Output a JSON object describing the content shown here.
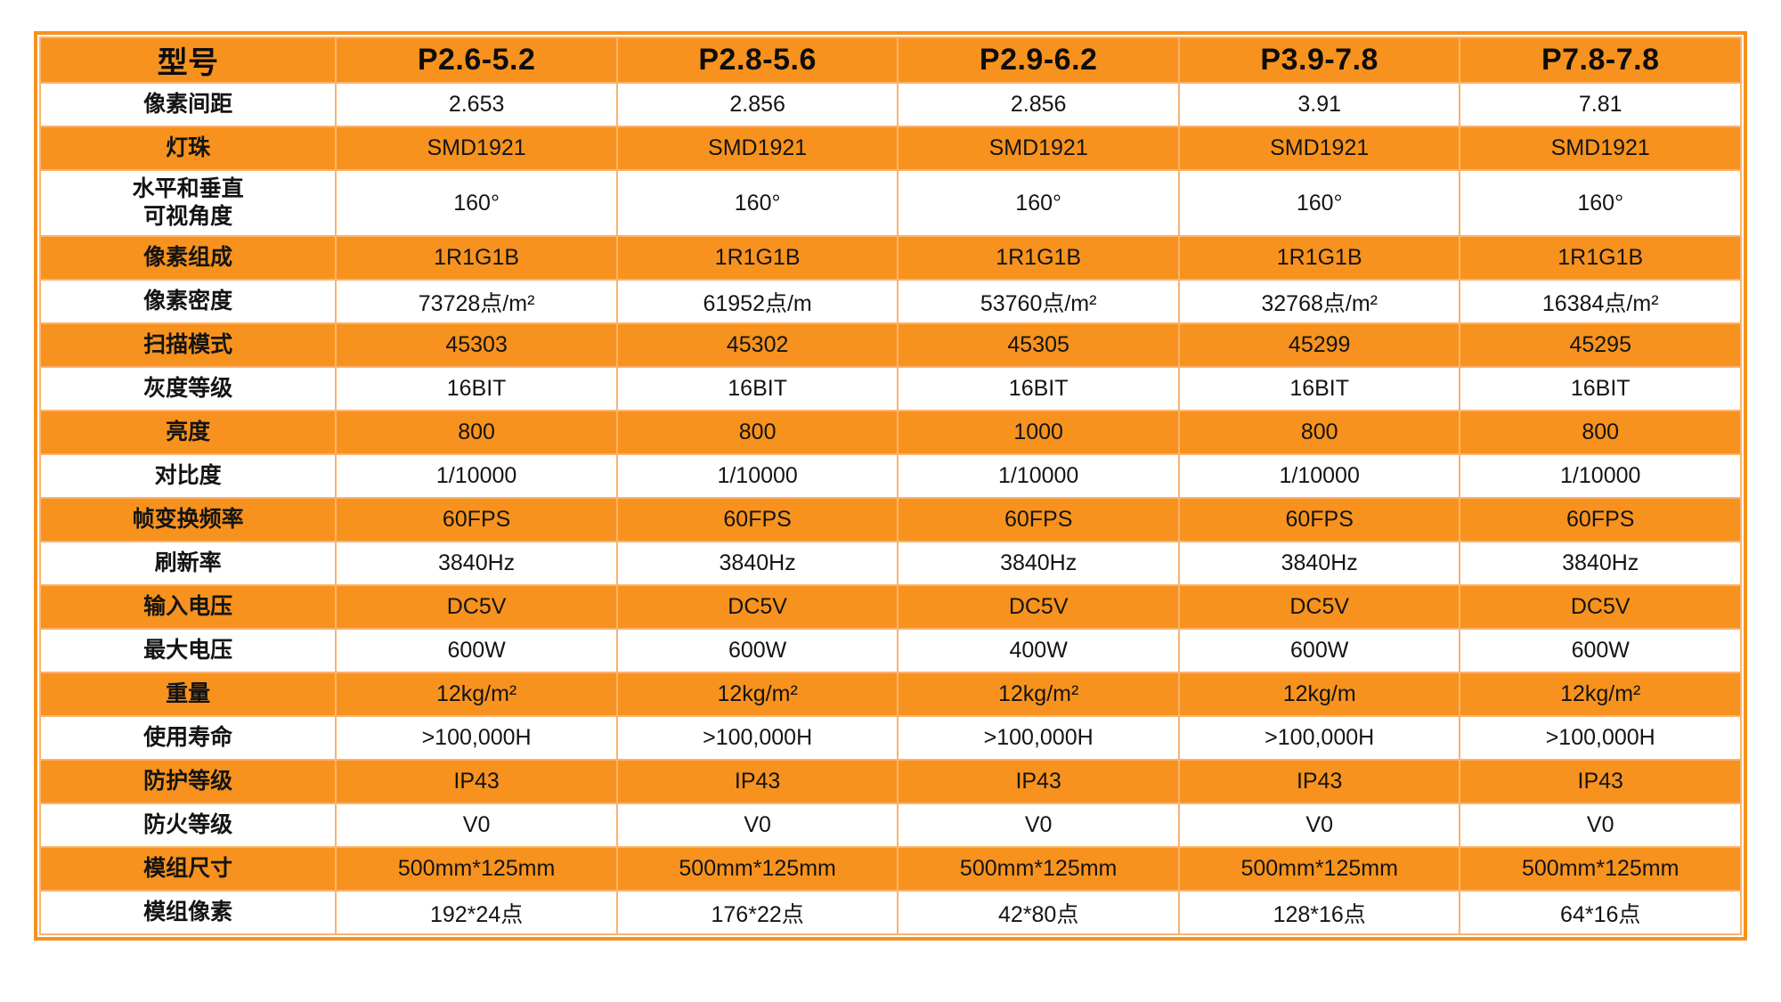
{
  "colors": {
    "orange_fill": "#F7921E",
    "grid_line": "#FBB26E",
    "text": "#141414",
    "page_background": "#FFFFFF"
  },
  "table": {
    "corner_label": "型号",
    "columns": [
      "P2.6-5.2",
      "P2.8-5.6",
      "P2.9-6.2",
      "P3.9-7.8",
      "P7.8-7.8"
    ],
    "rows": [
      {
        "label": "像素间距",
        "shade": "white",
        "values": [
          "2.653",
          "2.856",
          "2.856",
          "3.91",
          "7.81"
        ]
      },
      {
        "label": "灯珠",
        "shade": "orange",
        "values": [
          "SMD1921",
          "SMD1921",
          "SMD1921",
          "SMD1921",
          "SMD1921"
        ]
      },
      {
        "label": "水平和垂直\n可视角度",
        "shade": "white",
        "tall": true,
        "values": [
          "160°",
          "160°",
          "160°",
          "160°",
          "160°"
        ]
      },
      {
        "label": "像素组成",
        "shade": "orange",
        "values": [
          "1R1G1B",
          "1R1G1B",
          "1R1G1B",
          "1R1G1B",
          "1R1G1B"
        ]
      },
      {
        "label": "像素密度",
        "shade": "white",
        "values": [
          "73728点/m²",
          "61952点/m",
          "53760点/m²",
          "32768点/m²",
          "16384点/m²"
        ]
      },
      {
        "label": "扫描模式",
        "shade": "orange",
        "values": [
          "45303",
          "45302",
          "45305",
          "45299",
          "45295"
        ]
      },
      {
        "label": "灰度等级",
        "shade": "white",
        "values": [
          "16BIT",
          "16BIT",
          "16BIT",
          "16BIT",
          "16BIT"
        ]
      },
      {
        "label": "亮度",
        "shade": "orange",
        "values": [
          "800",
          "800",
          "1000",
          "800",
          "800"
        ]
      },
      {
        "label": "对比度",
        "shade": "white",
        "values": [
          "1/10000",
          "1/10000",
          "1/10000",
          "1/10000",
          "1/10000"
        ]
      },
      {
        "label": "帧变换频率",
        "shade": "orange",
        "values": [
          "60FPS",
          "60FPS",
          "60FPS",
          "60FPS",
          "60FPS"
        ]
      },
      {
        "label": "刷新率",
        "shade": "white",
        "values": [
          "3840Hz",
          "3840Hz",
          "3840Hz",
          "3840Hz",
          "3840Hz"
        ]
      },
      {
        "label": "输入电压",
        "shade": "orange",
        "values": [
          "DC5V",
          "DC5V",
          "DC5V",
          "DC5V",
          "DC5V"
        ]
      },
      {
        "label": "最大电压",
        "shade": "white",
        "values": [
          "600W",
          "600W",
          "400W",
          "600W",
          "600W"
        ]
      },
      {
        "label": "重量",
        "shade": "orange",
        "values": [
          "12kg/m²",
          "12kg/m²",
          "12kg/m²",
          "12kg/m",
          "12kg/m²"
        ]
      },
      {
        "label": "使用寿命",
        "shade": "white",
        "values": [
          ">100,000H",
          ">100,000H",
          ">100,000H",
          ">100,000H",
          ">100,000H"
        ]
      },
      {
        "label": "防护等级",
        "shade": "orange",
        "values": [
          "IP43",
          "IP43",
          "IP43",
          "IP43",
          "IP43"
        ]
      },
      {
        "label": "防火等级",
        "shade": "white",
        "values": [
          "V0",
          "V0",
          "V0",
          "V0",
          "V0"
        ]
      },
      {
        "label": "模组尺寸",
        "shade": "orange",
        "values": [
          "500mm*125mm",
          "500mm*125mm",
          "500mm*125mm",
          "500mm*125mm",
          "500mm*125mm"
        ]
      },
      {
        "label": "模组像素",
        "shade": "white",
        "values": [
          "192*24点",
          "176*22点",
          "42*80点",
          "128*16点",
          "64*16点"
        ]
      }
    ]
  }
}
